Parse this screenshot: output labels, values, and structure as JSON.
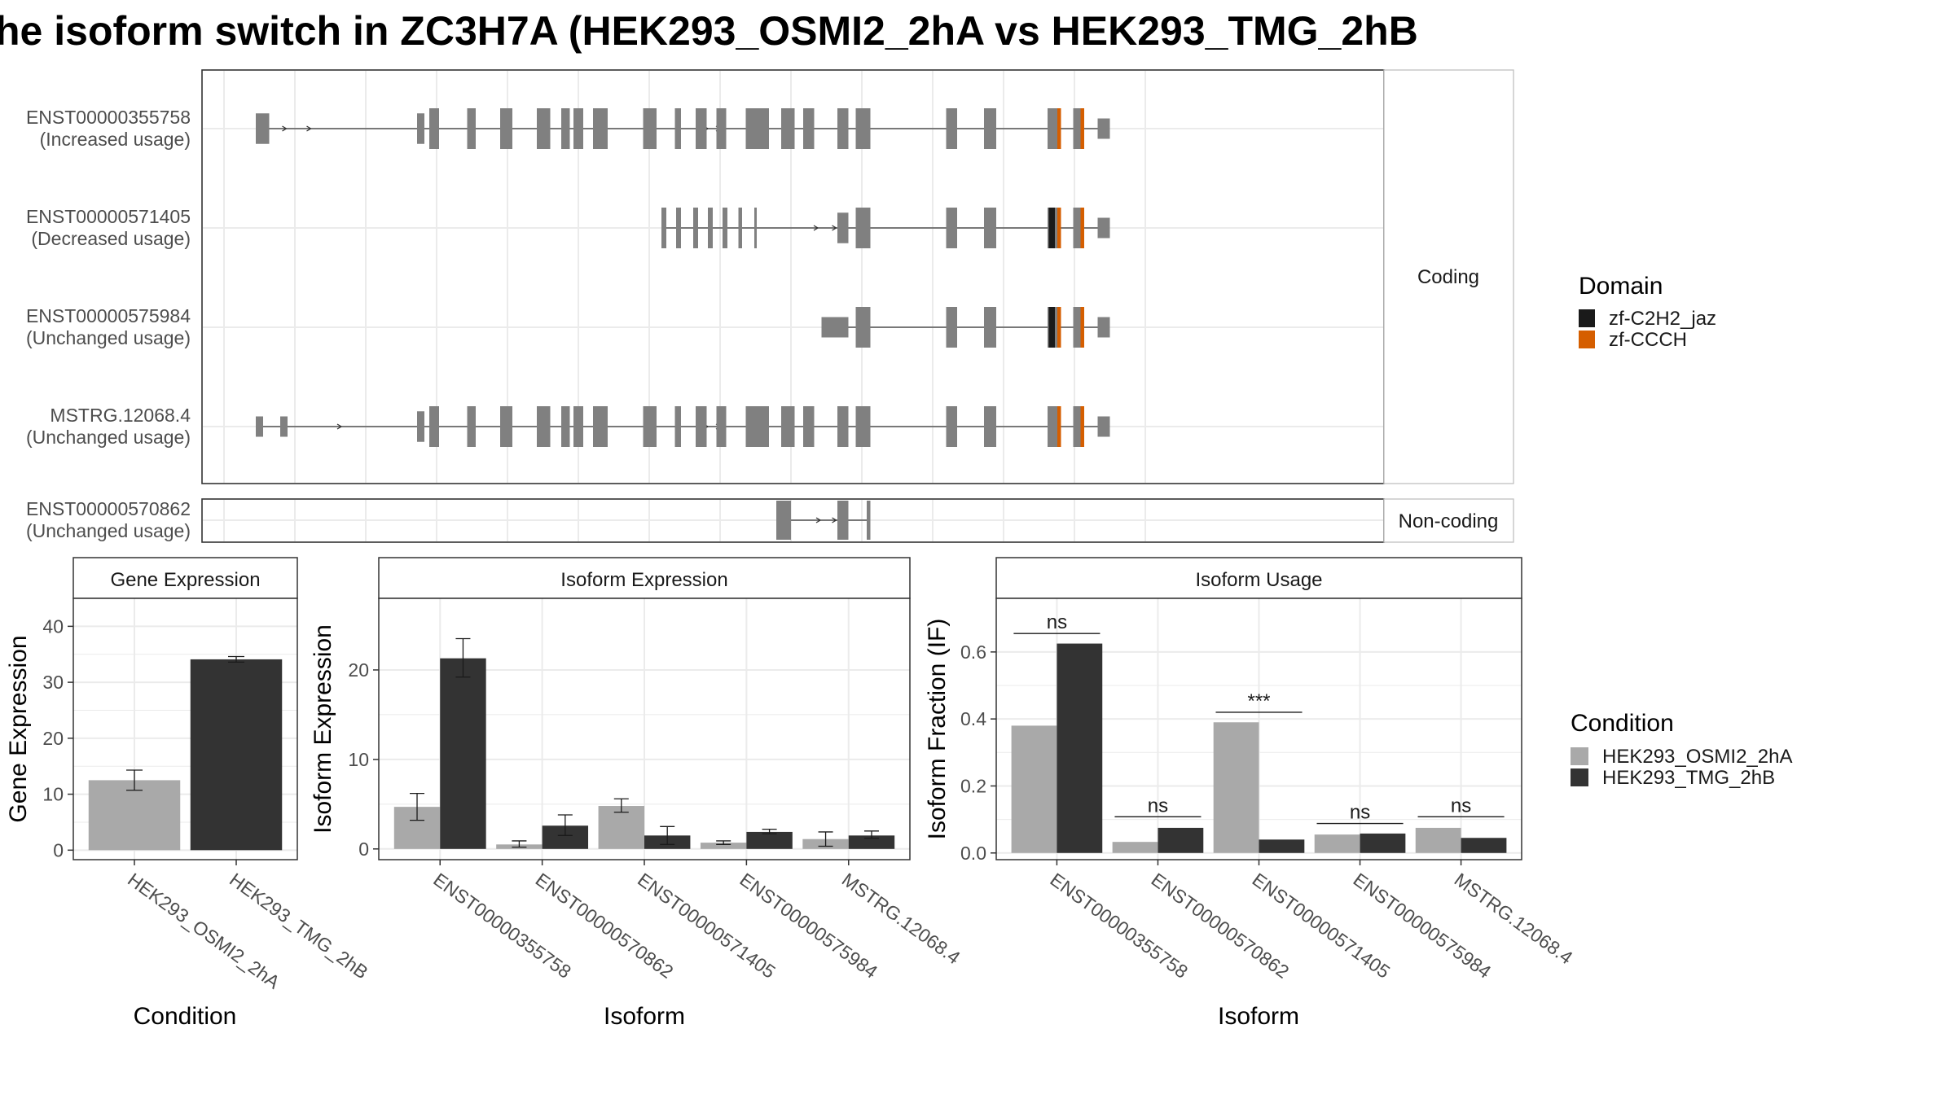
{
  "title": "he isoform switch in ZC3H7A (HEK293_OSMI2_2hA vs HEK293_TMG_2hB",
  "colors": {
    "exon": "#808080",
    "panel_border": "#333333",
    "grid": "#ebebeb",
    "strip_fill": "#ffffff",
    "cond1": "#a9a9a9",
    "cond2": "#333333",
    "zf_c2h2": "#1a1a1a",
    "zf_ccch": "#d55e00"
  },
  "isoform_structure": {
    "coding_label": "Coding",
    "noncoding_label": "Non-coding",
    "transcripts": [
      {
        "id": "ENST00000355758",
        "usage": "(Increased usage)",
        "group": "coding",
        "exons": [
          [
            0,
            1.1,
            0.75
          ],
          [
            13.2,
            13.8,
            0.75
          ],
          [
            14.2,
            15.0,
            1
          ],
          [
            17.3,
            18.0,
            1
          ],
          [
            20.0,
            21.0,
            1
          ],
          [
            23.0,
            24.1,
            1
          ],
          [
            25.0,
            25.7,
            1
          ],
          [
            26.0,
            26.8,
            1
          ],
          [
            27.6,
            28.8,
            1
          ],
          [
            31.7,
            32.8,
            1
          ],
          [
            34.3,
            34.8,
            1
          ],
          [
            36.0,
            36.9,
            1
          ],
          [
            37.7,
            38.5,
            1
          ],
          [
            40.1,
            42.0,
            1
          ],
          [
            43.0,
            44.1,
            1
          ],
          [
            44.8,
            45.7,
            1
          ],
          [
            47.6,
            48.5,
            1
          ],
          [
            49.1,
            50.3,
            1
          ],
          [
            56.5,
            57.4,
            1
          ],
          [
            59.6,
            60.6,
            1
          ],
          [
            64.8,
            65.6,
            1
          ],
          [
            66.9,
            67.5,
            1
          ],
          [
            68.9,
            69.9,
            0.5
          ]
        ],
        "domains": [
          [
            "zf-CCCH",
            65.6,
            65.9
          ],
          [
            "zf-CCCH",
            67.5,
            67.8
          ]
        ],
        "arrows": [
          2.5,
          4.5,
          37.0,
          38.0
        ]
      },
      {
        "id": "ENST00000571405",
        "usage": "(Decreased usage)",
        "group": "coding",
        "exons": [
          [
            33.2,
            33.6,
            1
          ],
          [
            34.4,
            34.8,
            1
          ],
          [
            35.8,
            36.2,
            1
          ],
          [
            37.0,
            37.4,
            1
          ],
          [
            38.2,
            38.6,
            1
          ],
          [
            39.5,
            39.8,
            1
          ],
          [
            40.8,
            41.0,
            1
          ],
          [
            47.6,
            48.5,
            0.75
          ],
          [
            49.1,
            50.3,
            1
          ],
          [
            56.5,
            57.4,
            1
          ],
          [
            59.6,
            60.6,
            1
          ],
          [
            64.8,
            65.6,
            1
          ],
          [
            66.9,
            67.5,
            1
          ],
          [
            68.9,
            69.9,
            0.5
          ]
        ],
        "domains": [
          [
            "zf-C2H2_jaz",
            64.9,
            65.4
          ],
          [
            "zf-CCCH",
            65.6,
            65.9
          ],
          [
            "zf-CCCH",
            67.5,
            67.8
          ]
        ],
        "arrows": [
          46.0,
          47.5
        ]
      },
      {
        "id": "ENST00000575984",
        "usage": "(Unchanged usage)",
        "group": "coding",
        "exons": [
          [
            46.3,
            48.5,
            0.5
          ],
          [
            49.1,
            50.3,
            1
          ],
          [
            56.5,
            57.4,
            1
          ],
          [
            59.6,
            60.6,
            1
          ],
          [
            64.8,
            65.6,
            1
          ],
          [
            66.9,
            67.5,
            1
          ],
          [
            68.9,
            69.9,
            0.5
          ]
        ],
        "domains": [
          [
            "zf-C2H2_jaz",
            64.9,
            65.4
          ],
          [
            "zf-CCCH",
            65.6,
            65.9
          ],
          [
            "zf-CCCH",
            67.5,
            67.8
          ]
        ],
        "arrows": []
      },
      {
        "id": "MSTRG.12068.4",
        "usage": "(Unchanged usage)",
        "group": "coding",
        "exons": [
          [
            0,
            0.6,
            0.5
          ],
          [
            2.0,
            2.6,
            0.5
          ],
          [
            13.2,
            13.8,
            0.75
          ],
          [
            14.2,
            15.0,
            1
          ],
          [
            17.3,
            18.0,
            1
          ],
          [
            20.0,
            21.0,
            1
          ],
          [
            23.0,
            24.1,
            1
          ],
          [
            25.0,
            25.7,
            1
          ],
          [
            26.0,
            26.8,
            1
          ],
          [
            27.6,
            28.8,
            1
          ],
          [
            31.7,
            32.8,
            1
          ],
          [
            34.3,
            34.8,
            1
          ],
          [
            36.0,
            36.9,
            1
          ],
          [
            37.7,
            38.5,
            1
          ],
          [
            40.1,
            42.0,
            1
          ],
          [
            43.0,
            44.1,
            1
          ],
          [
            44.8,
            45.7,
            1
          ],
          [
            47.6,
            48.5,
            1
          ],
          [
            49.1,
            50.3,
            1
          ],
          [
            56.5,
            57.4,
            1
          ],
          [
            59.6,
            60.6,
            1
          ],
          [
            64.8,
            65.6,
            1
          ],
          [
            66.9,
            67.5,
            1
          ],
          [
            68.9,
            69.9,
            0.5
          ]
        ],
        "domains": [
          [
            "zf-CCCH",
            65.6,
            65.9
          ],
          [
            "zf-CCCH",
            67.5,
            67.8
          ]
        ],
        "arrows": [
          7.0,
          37.0,
          38.0
        ]
      },
      {
        "id": "ENST00000570862",
        "usage": "(Unchanged usage)",
        "group": "noncoding",
        "exons": [
          [
            42.6,
            43.8,
            1
          ],
          [
            47.6,
            48.5,
            1
          ],
          [
            50.0,
            50.3,
            1
          ]
        ],
        "domains": [],
        "arrows": [
          46.2,
          47.5
        ]
      }
    ]
  },
  "domain_legend": {
    "title": "Domain",
    "items": [
      {
        "label": "zf-C2H2_jaz",
        "color": "#1a1a1a"
      },
      {
        "label": "zf-CCCH",
        "color": "#d55e00"
      }
    ]
  },
  "condition_legend": {
    "title": "Condition",
    "items": [
      {
        "label": "HEK293_OSMI2_2hA",
        "color": "#a9a9a9"
      },
      {
        "label": "HEK293_TMG_2hB",
        "color": "#333333"
      }
    ]
  },
  "chart_data": [
    {
      "type": "bar",
      "title": "Gene Expression",
      "xlabel": "Condition",
      "ylabel": "Gene Expression",
      "ylim": [
        -1.7,
        45
      ],
      "yticks": [
        0,
        10,
        20,
        30,
        40
      ],
      "categories": [
        "HEK293_OSMI2_2hA",
        "HEK293_TMG_2hB"
      ],
      "values": [
        12.5,
        34.1
      ],
      "errors": [
        [
          10.7,
          14.3
        ],
        [
          33.6,
          34.6
        ]
      ],
      "colors": [
        "#a9a9a9",
        "#333333"
      ]
    },
    {
      "type": "bar",
      "title": "Isoform Expression",
      "xlabel": "Isoform",
      "ylabel": "Isoform Expression",
      "ylim": [
        -1.2,
        28
      ],
      "yticks": [
        0,
        10,
        20
      ],
      "categories": [
        "ENST00000355758",
        "ENST00000570862",
        "ENST00000571405",
        "ENST00000575984",
        "MSTRG.12068.4"
      ],
      "series": [
        {
          "name": "HEK293_OSMI2_2hA",
          "values": [
            4.7,
            0.5,
            4.8,
            0.7,
            1.1
          ],
          "errors": [
            [
              3.2,
              6.2
            ],
            [
              0.2,
              0.9
            ],
            [
              4.1,
              5.6
            ],
            [
              0.5,
              0.9
            ],
            [
              0.3,
              1.9
            ]
          ]
        },
        {
          "name": "HEK293_TMG_2hB",
          "values": [
            21.3,
            2.6,
            1.5,
            1.9,
            1.5
          ],
          "errors": [
            [
              19.2,
              23.5
            ],
            [
              1.5,
              3.8
            ],
            [
              0.5,
              2.5
            ],
            [
              1.7,
              2.2
            ],
            [
              1.2,
              2.0
            ]
          ]
        }
      ]
    },
    {
      "type": "bar",
      "title": "Isoform Usage",
      "xlabel": "Isoform",
      "ylabel": "Isoform Fraction (IF)",
      "ylim": [
        -0.02,
        0.76
      ],
      "yticks": [
        0.0,
        0.2,
        0.4,
        0.6
      ],
      "categories": [
        "ENST00000355758",
        "ENST00000570862",
        "ENST00000571405",
        "ENST00000575984",
        "MSTRG.12068.4"
      ],
      "series": [
        {
          "name": "HEK293_OSMI2_2hA",
          "values": [
            0.38,
            0.033,
            0.39,
            0.055,
            0.075
          ]
        },
        {
          "name": "HEK293_TMG_2hB",
          "values": [
            0.625,
            0.075,
            0.04,
            0.058,
            0.045
          ]
        }
      ],
      "significance": [
        "ns",
        "ns",
        "***",
        "ns",
        "ns"
      ],
      "significance_y": [
        0.655,
        0.108,
        0.42,
        0.088,
        0.108
      ]
    }
  ]
}
